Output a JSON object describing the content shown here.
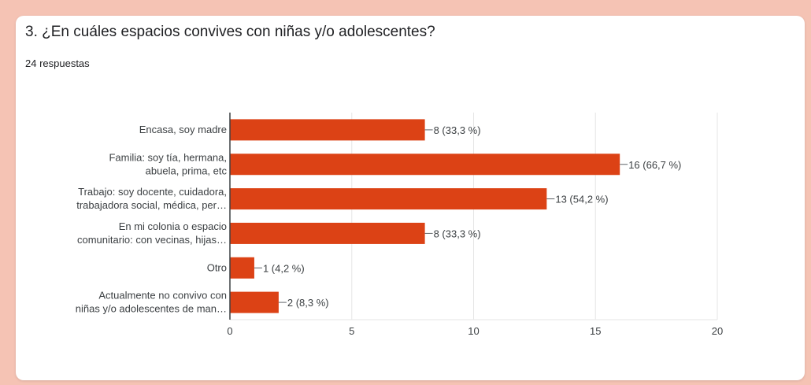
{
  "question": {
    "title": "3. ¿En cuáles espacios convives con niñas y/o adolescentes?",
    "responses": "24 respuestas"
  },
  "colors": {
    "bar": "#dc4215",
    "background": "#f5c3b4",
    "grid": "#e6e6e6",
    "axis": "#3c4043"
  },
  "chart_data": {
    "type": "bar",
    "orientation": "horizontal",
    "categories": [
      [
        "Encasa, soy madre"
      ],
      [
        "Familia: soy tía, hermana,",
        "abuela, prima, etc"
      ],
      [
        "Trabajo: soy docente, cuidadora,",
        "trabajadora social, médica, per…"
      ],
      [
        "En mi colonia o espacio",
        "comunitario: con vecinas, hijas…"
      ],
      [
        "Otro"
      ],
      [
        "Actualmente no convivo con",
        "niñas y/o adolescentes de man…"
      ]
    ],
    "values": [
      8,
      16,
      13,
      8,
      1,
      2
    ],
    "data_labels": [
      "8 (33,3 %)",
      "16 (66,7 %)",
      "13 (54,2 %)",
      "8 (33,3 %)",
      "1 (4,2 %)",
      "2 (8,3 %)"
    ],
    "xlim": [
      0,
      20
    ],
    "xticks": [
      0,
      5,
      10,
      15,
      20
    ],
    "grid": true
  }
}
